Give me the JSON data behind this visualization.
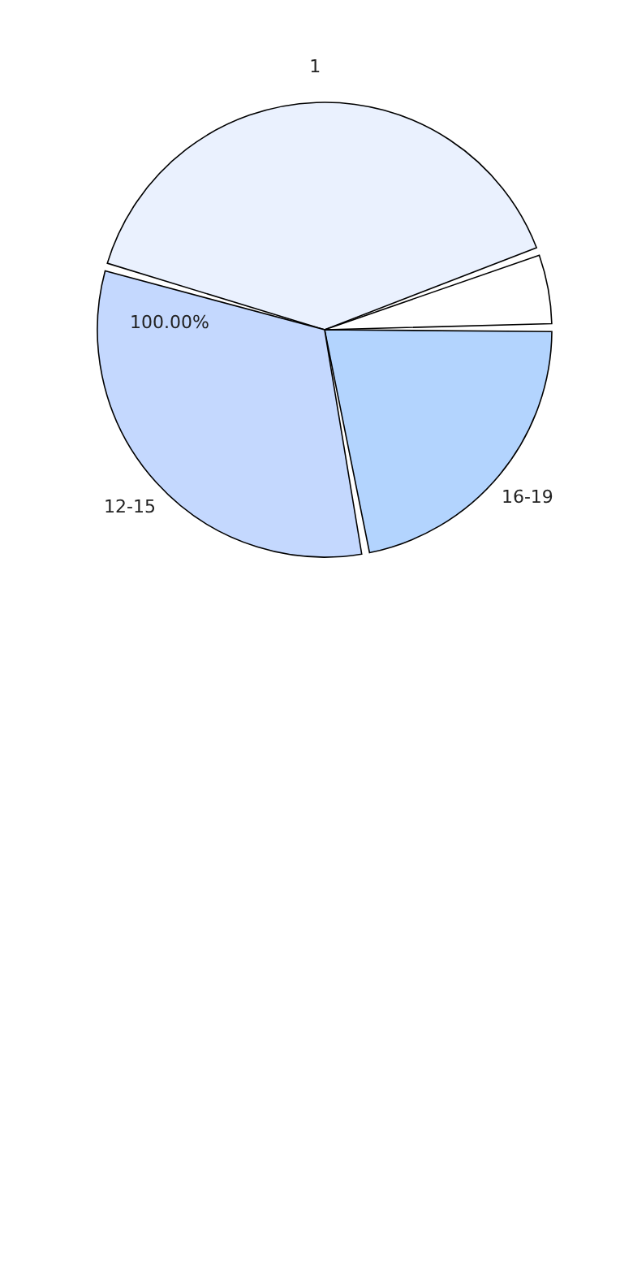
{
  "chart_data": {
    "type": "pie",
    "categories": [
      "1",
      null,
      "16-19",
      "12-15"
    ],
    "values": [
      40.3,
      5,
      22.2,
      32.5
    ],
    "colors": [
      "#eaf1fe",
      "#ffffff",
      "#b3d4fe",
      "#c4d8fe"
    ],
    "annotations": [
      "100.00%"
    ]
  }
}
